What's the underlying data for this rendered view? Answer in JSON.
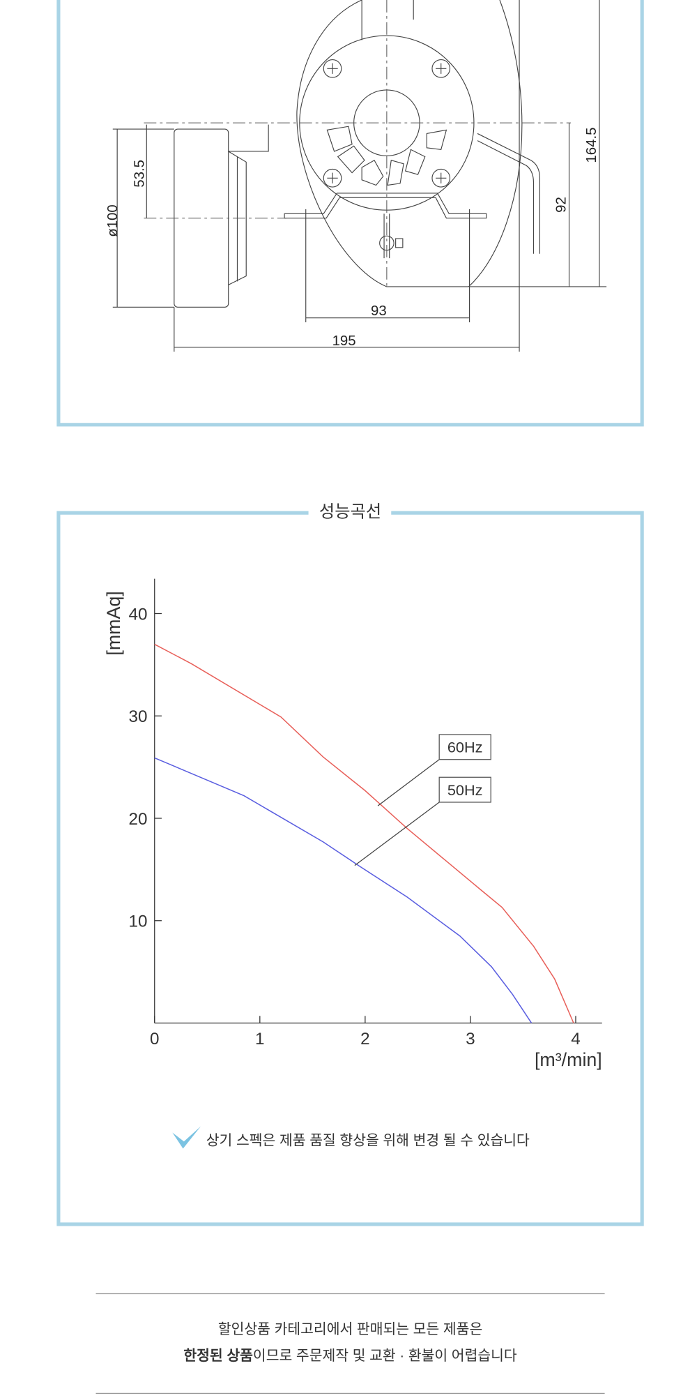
{
  "drawing": {
    "dimensions": [
      "53.5",
      "ø100",
      "93",
      "195",
      "164.5",
      "92"
    ]
  },
  "section_title": "성능곡선",
  "chart_data": {
    "type": "line",
    "y_label": "[mmAq]",
    "x_label": "[m³/min]",
    "xlim": [
      0,
      4.25
    ],
    "ylim": [
      0,
      43.4
    ],
    "xticks": [
      0,
      1,
      2,
      3,
      4
    ],
    "yticks": [
      10,
      20,
      30,
      40
    ],
    "series": [
      {
        "name": "60Hz",
        "color": "#e8605a",
        "x": [
          0,
          0.35,
          1.2,
          1.6,
          2.0,
          2.4,
          2.75,
          3.1,
          3.3,
          3.6,
          3.8,
          3.98
        ],
        "values": [
          37,
          35.1,
          29.9,
          26,
          22.7,
          19,
          16,
          13,
          11.3,
          7.5,
          4.3,
          0
        ]
      },
      {
        "name": "50Hz",
        "color": "#5a5ee0",
        "x": [
          0,
          0.85,
          1.6,
          1.95,
          2.4,
          2.9,
          3.2,
          3.4,
          3.58
        ],
        "values": [
          25.9,
          22.2,
          17.7,
          15.3,
          12.3,
          8.5,
          5.5,
          2.8,
          0
        ]
      }
    ]
  },
  "note": "상기 스펙은 제품 품질 향상을 위해 변경 될 수 있습니다",
  "footer": {
    "line1": "할인상품 카테고리에서 판매되는 모든 제품은",
    "line2_bold": "한정된 상품",
    "line2_rest": "이므로 주문제작 및 교환 · 환불이 어렵습니다"
  }
}
